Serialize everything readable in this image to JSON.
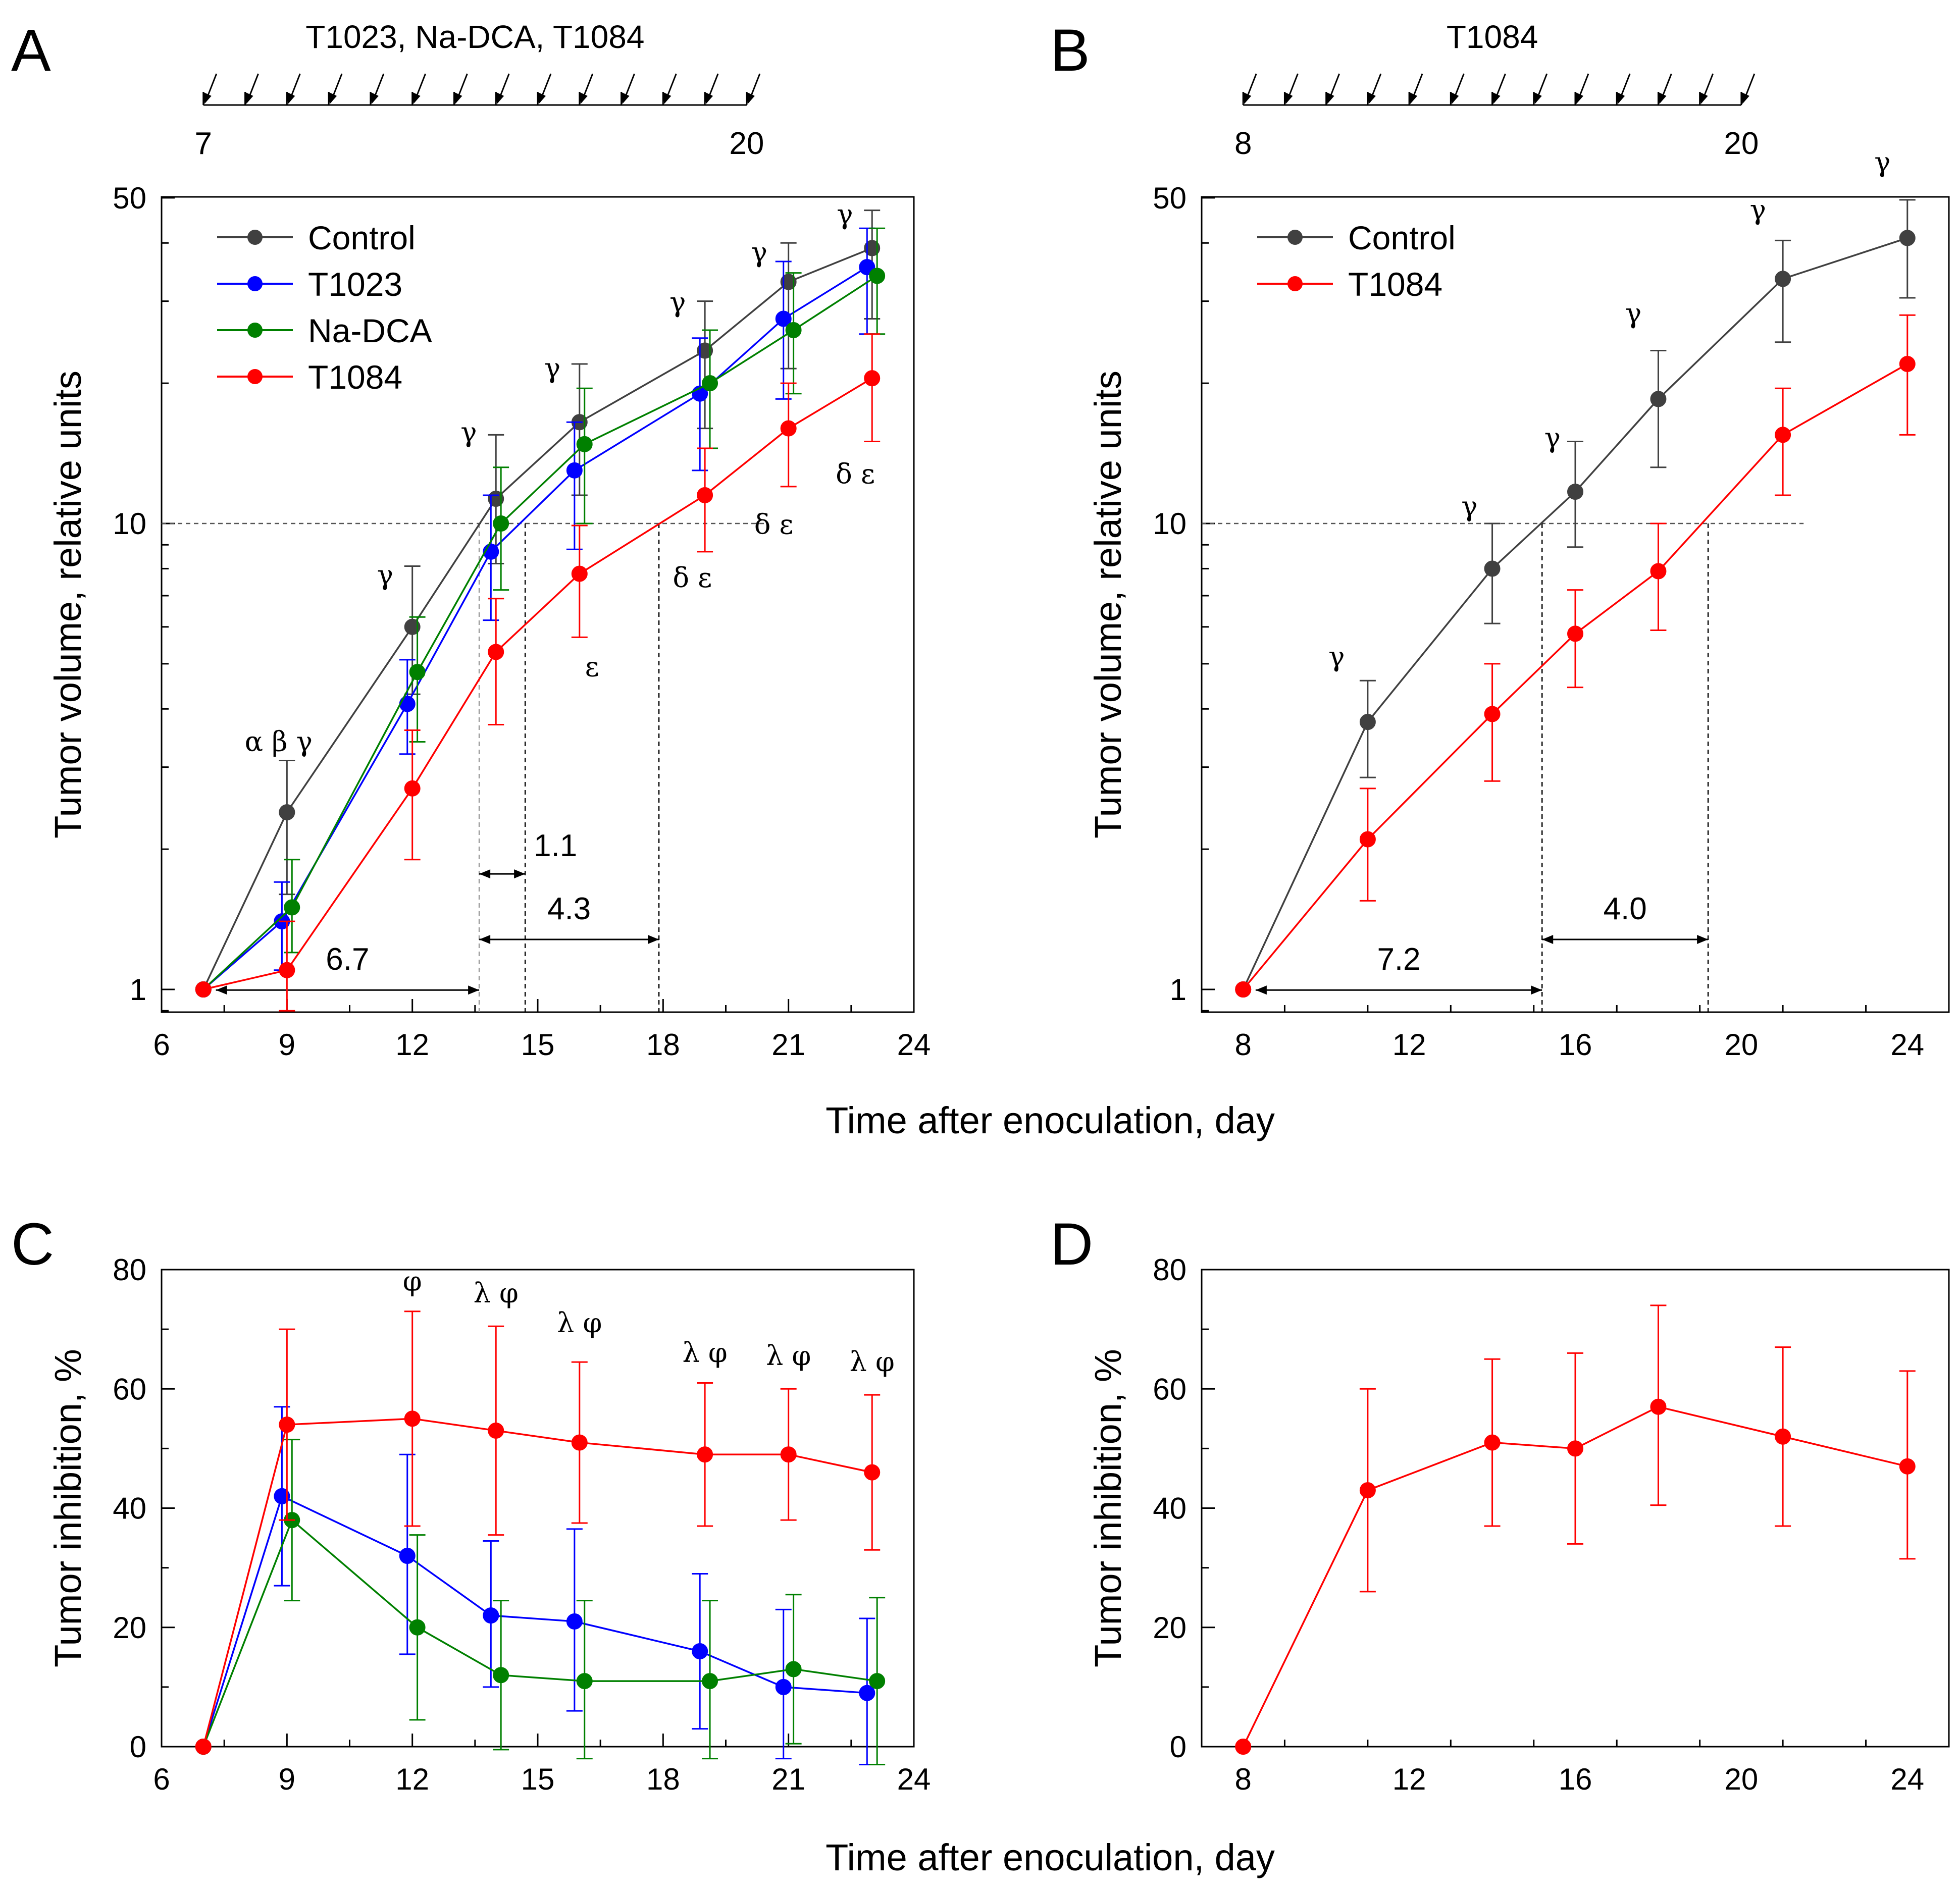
{
  "colors": {
    "Control": "#404040",
    "T1023": "#0000ff",
    "Na-DCA": "#008000",
    "T1084": "#ff0000",
    "axis": "#000000"
  },
  "chart_data": [
    {
      "panel": "A",
      "type": "line",
      "scale": "log",
      "xlabel": "Time after enoculation, day",
      "ylabel": "Tumor volume, relative units",
      "xlim": [
        6,
        24
      ],
      "ylim": [
        0.9,
        50
      ],
      "xticks": [
        "6",
        "9",
        "12",
        "15",
        "18",
        "21",
        "24"
      ],
      "yticks": [
        "1",
        "10",
        "50"
      ],
      "legend": [
        "Control",
        "T1023",
        "Na-DCA",
        "T1084"
      ],
      "legend_position": "top-left",
      "dosing": {
        "label": "T1023, Na-DCA, T1084",
        "start": "7",
        "end": "20"
      },
      "reference_line": 10,
      "series": [
        {
          "name": "Control",
          "x": [
            7,
            9,
            12,
            14,
            16,
            19,
            21,
            23
          ],
          "values": [
            1,
            2.4,
            6,
            11.3,
            16.5,
            23.5,
            33,
            39
          ],
          "lower": [
            1,
            1.6,
            4.3,
            8.2,
            11.5,
            16,
            21.5,
            27.5
          ],
          "upper": [
            1,
            3.1,
            8.1,
            15.5,
            22,
            30,
            40,
            47
          ]
        },
        {
          "name": "T1023",
          "x": [
            7,
            9,
            12,
            14,
            16,
            19,
            21,
            23
          ],
          "values": [
            1,
            1.4,
            4.1,
            8.7,
            13,
            19,
            27.5,
            35.5
          ],
          "lower": [
            1,
            1.1,
            3.2,
            6.2,
            8.8,
            13,
            18.5,
            25.5
          ],
          "upper": [
            1,
            1.7,
            5.1,
            11.5,
            16.5,
            25,
            36.5,
            43
          ]
        },
        {
          "name": "Na-DCA",
          "x": [
            7,
            9,
            12,
            14,
            16,
            19,
            21,
            23
          ],
          "values": [
            1,
            1.5,
            4.8,
            10,
            14.8,
            20,
            26,
            34
          ],
          "lower": [
            1,
            1.2,
            3.4,
            7.2,
            10,
            14.5,
            19,
            25.5
          ],
          "upper": [
            1,
            1.9,
            6.3,
            13.2,
            19.5,
            26,
            34.5,
            43
          ]
        },
        {
          "name": "T1084",
          "x": [
            7,
            9,
            12,
            14,
            16,
            19,
            21,
            23
          ],
          "values": [
            1,
            1.1,
            2.7,
            5.3,
            7.8,
            11.5,
            16,
            20.5
          ],
          "lower": [
            1,
            0.9,
            1.9,
            3.7,
            5.7,
            8.7,
            12,
            15
          ],
          "upper": [
            1,
            1.4,
            3.6,
            6.9,
            9.9,
            14.5,
            20,
            25.5
          ]
        }
      ],
      "annotations": [
        {
          "text": "α β γ",
          "x": 8.8,
          "y": 3.25
        },
        {
          "text": "γ",
          "x": 11.35,
          "y": 7.4
        },
        {
          "text": "γ",
          "x": 13.35,
          "y": 15
        },
        {
          "text": "γ",
          "x": 15.35,
          "y": 20.6
        },
        {
          "text": "γ",
          "x": 18.35,
          "y": 28.5
        },
        {
          "text": "γ",
          "x": 20.3,
          "y": 36.5
        },
        {
          "text": "γ",
          "x": 22.35,
          "y": 44
        },
        {
          "text": "ε",
          "x": 16.3,
          "y": 4.7
        },
        {
          "text": "δ ε",
          "x": 18.7,
          "y": 7.3
        },
        {
          "text": "δ ε",
          "x": 20.65,
          "y": 9.5
        },
        {
          "text": "δ ε",
          "x": 22.6,
          "y": 12.2
        }
      ],
      "intervals": [
        {
          "label": "6.7",
          "x1": 7.3,
          "x2": 13.6,
          "y": 0.997
        },
        {
          "label": "1.1",
          "x1": 13.6,
          "x2": 14.7,
          "y": 1.77
        },
        {
          "label": "4.3",
          "x1": 13.6,
          "x2": 17.9,
          "y": 1.28
        }
      ],
      "dashed_guides": [
        {
          "x": 13.6,
          "y_top": 10,
          "color": "grey"
        },
        {
          "x": 14.7,
          "y_top": 10,
          "color": "black"
        },
        {
          "x": 17.9,
          "y_top": 10,
          "color": "black"
        }
      ]
    },
    {
      "panel": "B",
      "type": "line",
      "scale": "log",
      "xlabel": "Time after enoculation, day",
      "ylabel": "Tumor volume, relative units",
      "xlim": [
        7,
        25
      ],
      "ylim": [
        0.9,
        50
      ],
      "xticks": [
        "8",
        "12",
        "16",
        "20",
        "24"
      ],
      "yticks": [
        "1",
        "10",
        "50"
      ],
      "legend": [
        "Control",
        "T1084"
      ],
      "legend_position": "top-left",
      "dosing": {
        "label": "T1084",
        "start": "8",
        "end": "20"
      },
      "reference_line": 10,
      "series": [
        {
          "name": "Control",
          "x": [
            8,
            11,
            14,
            16,
            18,
            21,
            24
          ],
          "values": [
            1,
            3.75,
            8,
            11.7,
            18.5,
            33.5,
            41
          ],
          "lower": [
            1,
            2.85,
            6.1,
            8.9,
            13.2,
            24.5,
            30.5
          ],
          "upper": [
            1,
            4.6,
            10,
            15,
            23.5,
            40.5,
            49.5
          ]
        },
        {
          "name": "T1084",
          "x": [
            8,
            11,
            14,
            16,
            18,
            21,
            24
          ],
          "values": [
            1,
            2.1,
            3.9,
            5.8,
            7.9,
            15.5,
            22
          ],
          "lower": [
            1,
            1.55,
            2.8,
            4.45,
            5.9,
            11.5,
            15.5
          ],
          "upper": [
            1,
            2.7,
            5,
            7.2,
            10,
            19.5,
            28
          ]
        }
      ],
      "annotations": [
        {
          "text": "γ",
          "x": 10.25,
          "y": 4.95
        },
        {
          "text": "γ",
          "x": 13.45,
          "y": 10.4
        },
        {
          "text": "γ",
          "x": 15.45,
          "y": 14.6
        },
        {
          "text": "γ",
          "x": 17.4,
          "y": 27
        },
        {
          "text": "γ",
          "x": 20.4,
          "y": 45
        },
        {
          "text": "γ",
          "x": 23.4,
          "y": 57
        }
      ],
      "intervals": [
        {
          "label": "7.2",
          "x1": 8.3,
          "x2": 15.2,
          "y": 0.997
        },
        {
          "label": "4.0",
          "x1": 15.2,
          "x2": 19.2,
          "y": 1.28
        }
      ],
      "dashed_guides": [
        {
          "x": 15.2,
          "y_top": 10,
          "color": "black"
        },
        {
          "x": 19.2,
          "y_top": 10,
          "color": "black"
        }
      ]
    },
    {
      "panel": "C",
      "type": "line",
      "scale": "linear",
      "xlabel": "Time after enoculation, day",
      "ylabel": "Tumor inhibition, %",
      "xlim": [
        6,
        24
      ],
      "ylim": [
        0,
        80
      ],
      "xticks": [
        "6",
        "9",
        "12",
        "15",
        "18",
        "21",
        "24"
      ],
      "yticks": [
        "0",
        "20",
        "40",
        "60",
        "80"
      ],
      "series": [
        {
          "name": "T1023",
          "x": [
            7,
            9,
            12,
            14,
            16,
            19,
            21,
            23
          ],
          "values": [
            0,
            42,
            32,
            22,
            21,
            16,
            10,
            9
          ],
          "lower": [
            0,
            27,
            15.5,
            10,
            6,
            3,
            -2,
            -3
          ],
          "upper": [
            0,
            57,
            49,
            34.5,
            36.5,
            29,
            23,
            21.5
          ]
        },
        {
          "name": "Na-DCA",
          "x": [
            7,
            9,
            12,
            14,
            16,
            19,
            21,
            23
          ],
          "values": [
            0,
            38,
            20,
            12,
            11,
            11,
            13,
            11
          ],
          "lower": [
            0,
            24.5,
            4.5,
            -0.5,
            -2,
            -2,
            0.5,
            -3
          ],
          "upper": [
            0,
            51.5,
            35.5,
            24.5,
            24.5,
            24.5,
            25.5,
            25
          ]
        },
        {
          "name": "T1084",
          "x": [
            7,
            9,
            12,
            14,
            16,
            19,
            21,
            23
          ],
          "values": [
            0,
            54,
            55,
            53,
            51,
            49,
            49,
            46
          ],
          "lower": [
            0,
            38,
            37,
            35.5,
            37.5,
            37,
            38,
            33
          ],
          "upper": [
            0,
            70,
            73,
            70.5,
            64.5,
            61,
            60,
            59
          ]
        }
      ],
      "annotations": [
        {
          "text": "φ",
          "x": 12,
          "y": 76.5
        },
        {
          "text": "λ φ",
          "x": 14,
          "y": 74.5
        },
        {
          "text": "λ φ",
          "x": 16,
          "y": 69.5
        },
        {
          "text": "λ φ",
          "x": 19,
          "y": 64.5
        },
        {
          "text": "λ φ",
          "x": 21,
          "y": 64
        },
        {
          "text": "λ φ",
          "x": 23,
          "y": 63
        }
      ]
    },
    {
      "panel": "D",
      "type": "line",
      "scale": "linear",
      "xlabel": "Time after enoculation, day",
      "ylabel": "Tumor inhibition, %",
      "xlim": [
        7,
        25
      ],
      "ylim": [
        0,
        80
      ],
      "xticks": [
        "8",
        "12",
        "16",
        "20",
        "24"
      ],
      "yticks": [
        "0",
        "20",
        "40",
        "60",
        "80"
      ],
      "series": [
        {
          "name": "T1084",
          "x": [
            8,
            11,
            14,
            16,
            18,
            21,
            24
          ],
          "values": [
            0,
            43,
            51,
            50,
            57,
            52,
            47
          ],
          "lower": [
            0,
            26,
            37,
            34,
            40.5,
            37,
            31.5
          ],
          "upper": [
            0,
            60,
            65,
            66,
            74,
            67,
            63
          ]
        }
      ]
    }
  ]
}
